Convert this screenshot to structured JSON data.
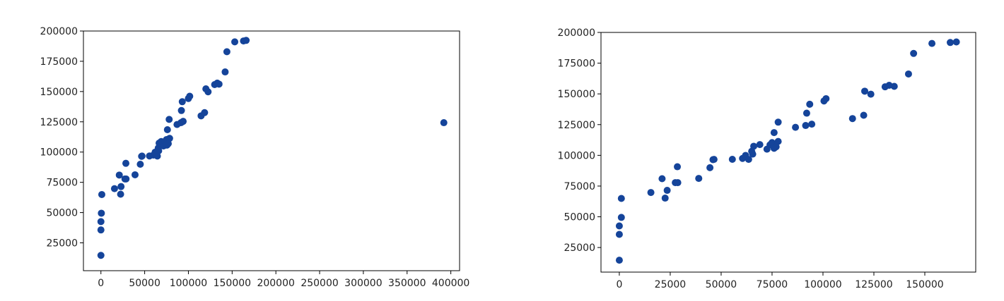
{
  "chart_data": [
    {
      "type": "scatter",
      "title": "",
      "xlabel": "",
      "ylabel": "",
      "xlim": [
        -20000,
        410000
      ],
      "ylim": [
        2000,
        200000
      ],
      "xticks": [
        0,
        50000,
        100000,
        150000,
        200000,
        250000,
        300000,
        350000,
        400000
      ],
      "yticks": [
        25000,
        50000,
        75000,
        100000,
        125000,
        150000,
        175000,
        200000
      ],
      "grid": false,
      "color": "#15449a",
      "points": [
        [
          0,
          14681
        ],
        [
          0,
          35673
        ],
        [
          0,
          42560
        ],
        [
          500,
          49490
        ],
        [
          1000,
          64926
        ],
        [
          15500,
          69759
        ],
        [
          21000,
          81005
        ],
        [
          22500,
          65200
        ],
        [
          23000,
          71498
        ],
        [
          27500,
          77798
        ],
        [
          28500,
          90708
        ],
        [
          28700,
          77798
        ],
        [
          39000,
          81229
        ],
        [
          45000,
          89949
        ],
        [
          46500,
          96480
        ],
        [
          47000,
          96700
        ],
        [
          55500,
          96778
        ],
        [
          60000,
          97483
        ],
        [
          62000,
          99937
        ],
        [
          64500,
          96712
        ],
        [
          65500,
          103282
        ],
        [
          66000,
          101004
        ],
        [
          66500,
          107404
        ],
        [
          69000,
          108734
        ],
        [
          71500,
          105008
        ],
        [
          73500,
          108552
        ],
        [
          75000,
          110352
        ],
        [
          75500,
          105733
        ],
        [
          76000,
          118474
        ],
        [
          77000,
          107000
        ],
        [
          78500,
          111313
        ],
        [
          78000,
          126992
        ],
        [
          87000,
          122776
        ],
        [
          91500,
          124266
        ],
        [
          92000,
          134307
        ],
        [
          94000,
          125370
        ],
        [
          93000,
          141585
        ],
        [
          100000,
          144259
        ],
        [
          101500,
          146122
        ],
        [
          114500,
          129917
        ],
        [
          118500,
          132602
        ],
        [
          120000,
          152212
        ],
        [
          122500,
          149760
        ],
        [
          130000,
          155753
        ],
        [
          133000,
          156991
        ],
        [
          135000,
          156122
        ],
        [
          142000,
          166188
        ],
        [
          144000,
          182902
        ],
        [
          153000,
          191050
        ],
        [
          163000,
          191792
        ],
        [
          166000,
          192262
        ],
        [
          392000,
          124266
        ]
      ]
    },
    {
      "type": "scatter",
      "title": "",
      "xlabel": "",
      "ylabel": "",
      "xlim": [
        -9000,
        175000
      ],
      "ylim": [
        5000,
        200000
      ],
      "xticks": [
        0,
        25000,
        50000,
        75000,
        100000,
        125000,
        150000
      ],
      "yticks": [
        25000,
        50000,
        75000,
        100000,
        125000,
        150000,
        175000,
        200000
      ],
      "grid": false,
      "color": "#15449a",
      "points": [
        [
          0,
          14681
        ],
        [
          0,
          35673
        ],
        [
          0,
          42560
        ],
        [
          1000,
          49490
        ],
        [
          1000,
          64926
        ],
        [
          15500,
          69759
        ],
        [
          21000,
          81005
        ],
        [
          22500,
          65200
        ],
        [
          23500,
          71498
        ],
        [
          27500,
          77798
        ],
        [
          28500,
          90708
        ],
        [
          28700,
          77798
        ],
        [
          39000,
          81229
        ],
        [
          44500,
          89949
        ],
        [
          46000,
          96480
        ],
        [
          46500,
          96700
        ],
        [
          55500,
          96778
        ],
        [
          60500,
          97483
        ],
        [
          62000,
          99937
        ],
        [
          63500,
          96712
        ],
        [
          65000,
          103282
        ],
        [
          65500,
          101004
        ],
        [
          66000,
          107404
        ],
        [
          69000,
          108734
        ],
        [
          72500,
          105008
        ],
        [
          74000,
          108552
        ],
        [
          75000,
          110352
        ],
        [
          76000,
          105733
        ],
        [
          76000,
          118474
        ],
        [
          77000,
          107000
        ],
        [
          78000,
          111313
        ],
        [
          78000,
          126992
        ],
        [
          86500,
          122776
        ],
        [
          91500,
          124266
        ],
        [
          92000,
          134307
        ],
        [
          94500,
          125370
        ],
        [
          93500,
          141585
        ],
        [
          100500,
          144259
        ],
        [
          101500,
          146122
        ],
        [
          114500,
          129917
        ],
        [
          120000,
          132602
        ],
        [
          120500,
          152212
        ],
        [
          123500,
          149760
        ],
        [
          130500,
          155753
        ],
        [
          132500,
          156991
        ],
        [
          135000,
          156122
        ],
        [
          142000,
          166188
        ],
        [
          144500,
          182902
        ],
        [
          153500,
          191050
        ],
        [
          162500,
          191792
        ],
        [
          165500,
          192262
        ]
      ]
    }
  ]
}
